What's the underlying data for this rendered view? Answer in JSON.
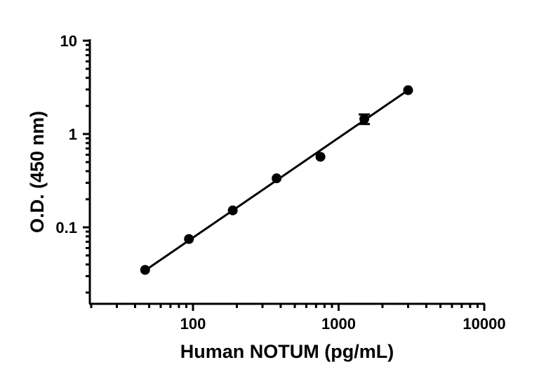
{
  "chart_data": {
    "type": "scatter",
    "title": "",
    "xlabel": "Human NOTUM (pg/mL)",
    "ylabel": "O.D. (450 nm)",
    "x_scale": "log",
    "y_scale": "log",
    "xlim": [
      20,
      10000
    ],
    "ylim": [
      0.015,
      10
    ],
    "x_ticks": [
      {
        "value": 100,
        "label": "100"
      },
      {
        "value": 1000,
        "label": "1000"
      },
      {
        "value": 10000,
        "label": "10000"
      }
    ],
    "y_ticks": [
      {
        "value": 0.1,
        "label": "0.1"
      },
      {
        "value": 1,
        "label": "1"
      },
      {
        "value": 10,
        "label": "10"
      }
    ],
    "grid": false,
    "legend": "none",
    "colors": {
      "marker": "#000000",
      "line": "#000000"
    },
    "series": [
      {
        "points": [
          {
            "x": 46.9,
            "y": 0.035
          },
          {
            "x": 93.8,
            "y": 0.075
          },
          {
            "x": 187.5,
            "y": 0.152
          },
          {
            "x": 375,
            "y": 0.335
          },
          {
            "x": 750,
            "y": 0.57
          },
          {
            "x": 1500,
            "y": 1.45,
            "err_low": 1.28,
            "err_high": 1.62
          },
          {
            "x": 3000,
            "y": 2.95
          }
        ]
      }
    ],
    "fit_line": {
      "type": "linear-log-log",
      "x": [
        46.9,
        3000
      ],
      "y": [
        0.0345,
        2.95
      ]
    }
  }
}
